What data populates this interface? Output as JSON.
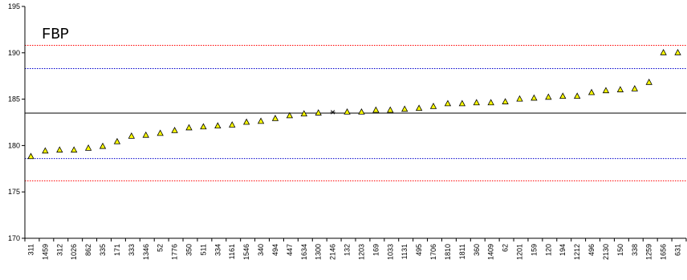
{
  "chart_data": {
    "type": "scatter",
    "title": "FBP",
    "xlabel": "",
    "ylabel": "",
    "ylim": [
      170,
      195
    ],
    "yticks": [
      170,
      175,
      180,
      185,
      190,
      195
    ],
    "grid": false,
    "legend": "none",
    "categories": [
      "311",
      "1459",
      "312",
      "1026",
      "862",
      "335",
      "171",
      "333",
      "1346",
      "52",
      "1776",
      "350",
      "511",
      "334",
      "1161",
      "1546",
      "340",
      "494",
      "447",
      "1634",
      "1300",
      "2146",
      "132",
      "1203",
      "169",
      "1033",
      "1131",
      "495",
      "1706",
      "1810",
      "1811",
      "360",
      "1409",
      "62",
      "1201",
      "159",
      "120",
      "194",
      "1212",
      "496",
      "2130",
      "150",
      "338",
      "1259",
      "1656",
      "631"
    ],
    "series": [
      {
        "values": [
          178.8,
          179.4,
          179.5,
          179.5,
          179.7,
          179.9,
          180.4,
          181.0,
          181.1,
          181.3,
          181.6,
          181.9,
          182.0,
          182.1,
          182.2,
          182.5,
          182.6,
          182.9,
          183.2,
          183.4,
          183.5,
          183.6,
          183.6,
          183.6,
          183.8,
          183.8,
          183.9,
          184.0,
          184.2,
          184.5,
          184.5,
          184.6,
          184.6,
          184.7,
          185.0,
          185.1,
          185.2,
          185.3,
          185.3,
          185.7,
          185.9,
          186.0,
          186.1,
          186.8,
          190.0,
          190.0
        ],
        "color": "#ffff00",
        "highlight_index": 21,
        "highlight_marker": "asterisk"
      }
    ],
    "reference_lines": [
      {
        "value": 190.8,
        "color": "#ff0000",
        "style": "dotted"
      },
      {
        "value": 188.3,
        "color": "#0000cc",
        "style": "dotted"
      },
      {
        "value": 183.5,
        "color": "#000000",
        "style": "solid"
      },
      {
        "value": 178.6,
        "color": "#0000cc",
        "style": "dotted"
      },
      {
        "value": 176.2,
        "color": "#ff0000",
        "style": "dotted"
      }
    ]
  }
}
